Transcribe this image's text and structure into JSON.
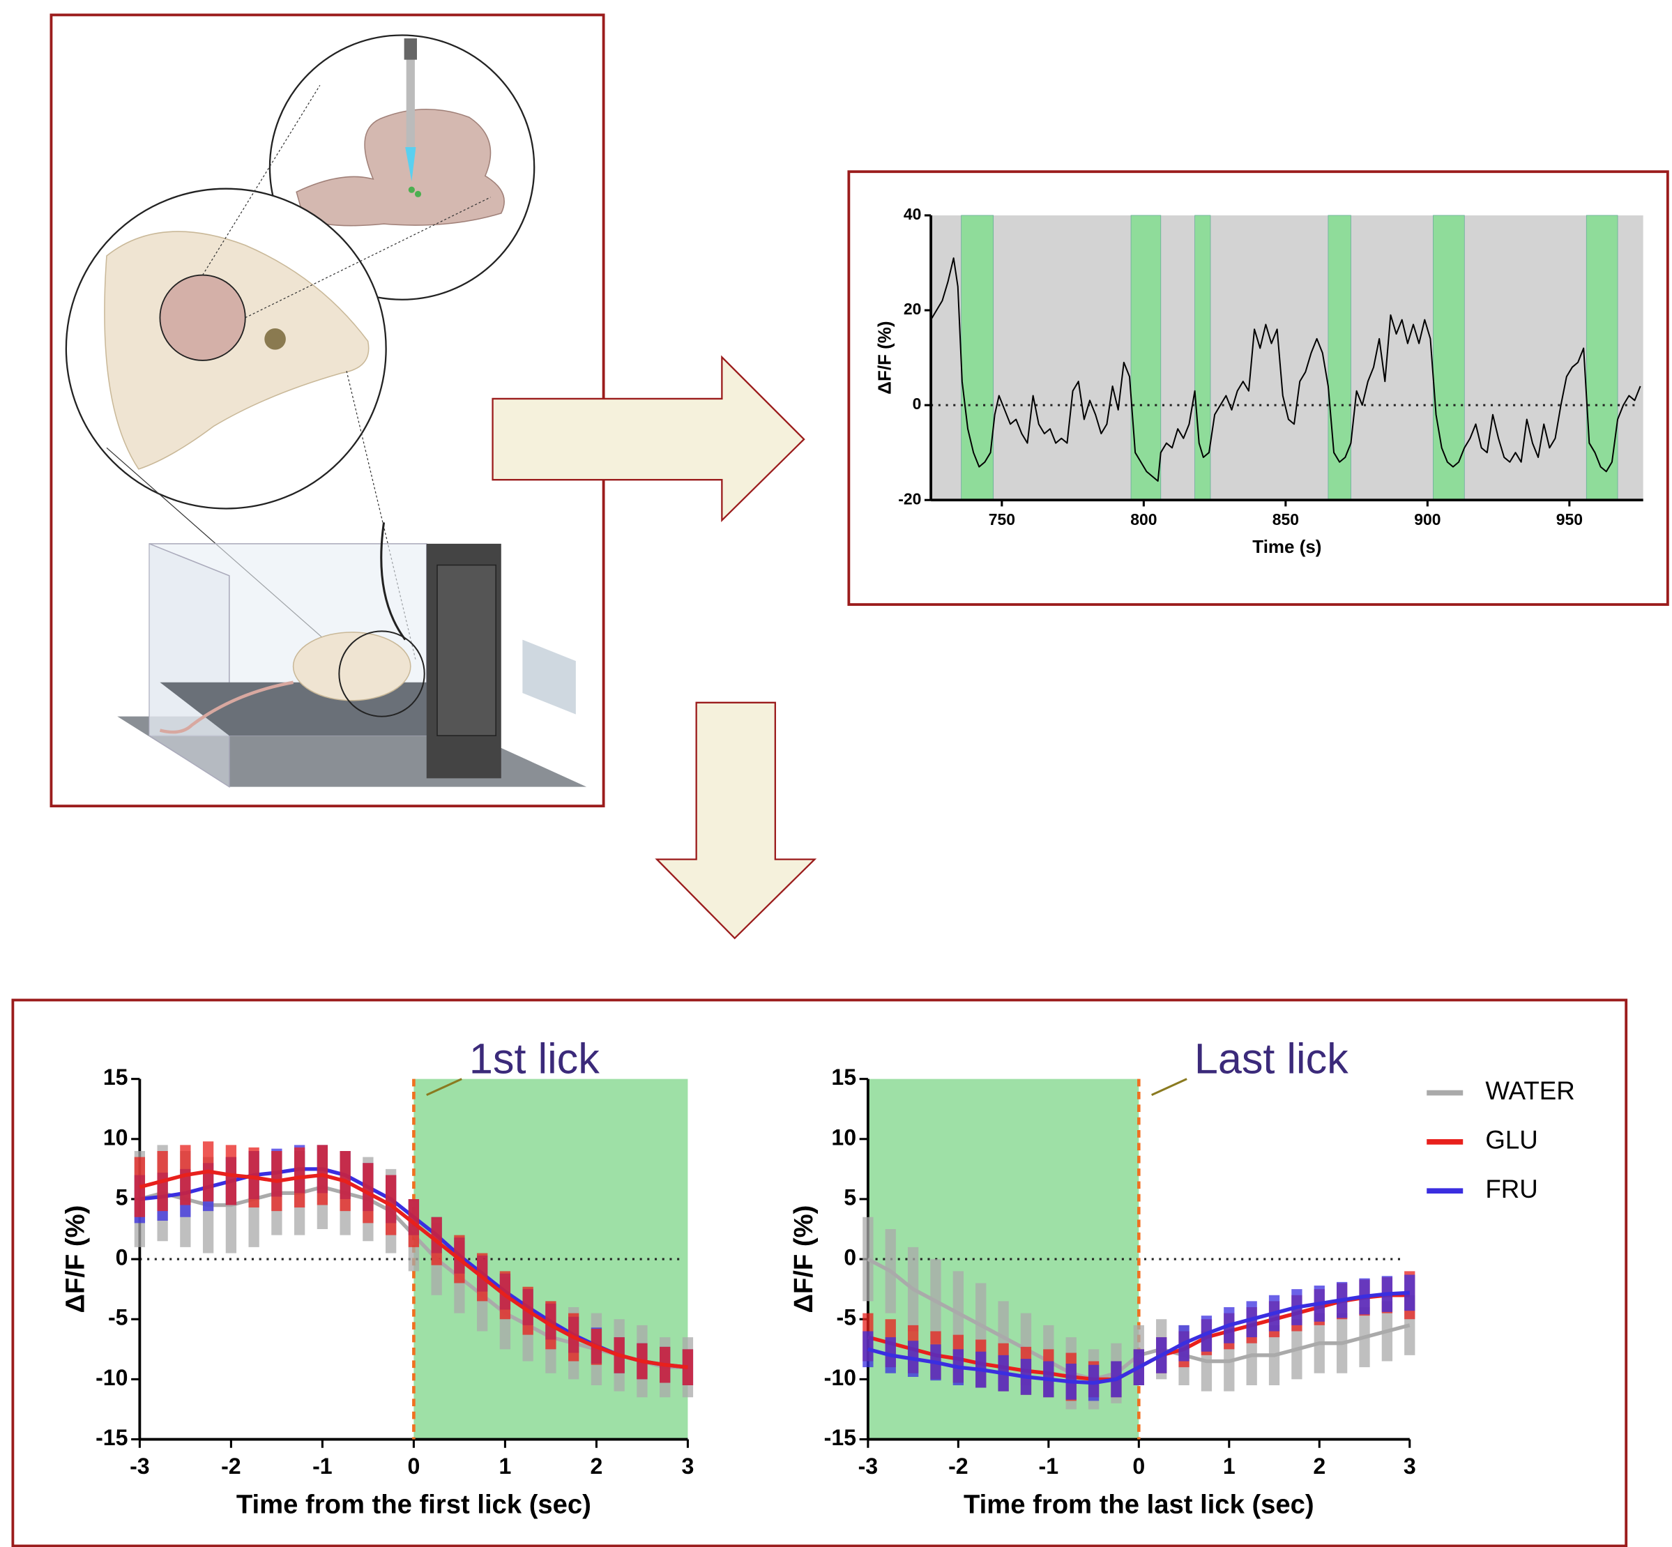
{
  "chart_data": [
    {
      "type": "line",
      "y_label": "ΔF/F (%)",
      "x_label": "Time (s)",
      "xlim": [
        725,
        976
      ],
      "ylim": [
        -20,
        40
      ],
      "xticks": [
        750,
        800,
        850,
        900,
        950
      ],
      "yticks": [
        -20,
        0,
        20,
        40
      ],
      "background_color": "#d3d3d3",
      "shade_color": "#8fdc9a",
      "reference_line": 0,
      "shaded_regions": [
        [
          735.7,
          747
        ],
        [
          795.5,
          806
        ],
        [
          818,
          823.5
        ],
        [
          865,
          873
        ],
        [
          902,
          913
        ],
        [
          956,
          967
        ]
      ],
      "x": [
        725,
        727,
        729,
        731,
        733,
        734.5,
        736,
        738,
        740,
        742,
        744,
        746,
        747.5,
        749,
        751,
        753,
        755,
        757,
        759,
        761,
        763,
        765,
        767,
        769,
        771,
        773,
        775,
        777,
        779,
        781,
        783,
        785,
        787,
        789,
        791,
        793,
        795,
        797,
        799,
        801,
        803,
        805,
        806,
        808,
        810,
        812,
        814,
        816,
        818,
        819.5,
        821,
        823,
        825,
        827,
        829,
        831,
        833,
        835,
        837,
        839,
        841,
        843,
        845,
        847,
        849,
        851,
        853,
        855,
        857,
        859,
        861,
        863,
        865,
        867,
        869,
        871,
        873,
        875,
        877,
        879,
        881,
        883,
        885,
        887,
        889,
        891,
        893,
        895,
        897,
        899,
        901,
        903,
        905,
        907,
        909,
        911,
        913,
        915,
        917,
        919,
        921,
        923,
        925,
        927,
        929,
        931,
        933,
        935,
        937,
        939,
        941,
        943,
        945,
        947,
        949,
        951,
        953,
        955,
        957,
        959,
        961,
        963,
        965,
        967,
        969,
        971,
        973,
        975
      ],
      "series": [
        {
          "color": "#000000",
          "values": [
            18,
            20,
            22,
            26,
            31,
            25,
            5,
            -5,
            -10,
            -13,
            -12,
            -10,
            -2,
            2,
            -1,
            -4,
            -3,
            -6,
            -8,
            2,
            -4,
            -6,
            -5,
            -8,
            -7,
            -8,
            3,
            5,
            -3,
            1,
            -2,
            -6,
            -4,
            4,
            -1,
            9,
            6,
            -10,
            -12,
            -14,
            -15,
            -16,
            -10,
            -8,
            -9,
            -5,
            -7,
            -4,
            3,
            -8,
            -11,
            -10,
            -2,
            0,
            2,
            -1,
            3,
            5,
            3,
            16,
            12,
            17,
            13,
            16,
            2,
            -3,
            -4,
            5,
            7,
            11,
            14,
            11,
            4,
            -10,
            -12,
            -11,
            -8,
            3,
            0,
            5,
            8,
            14,
            5,
            19,
            15,
            18,
            13,
            17,
            13,
            18,
            14,
            -2,
            -9,
            -12,
            -13,
            -12,
            -9,
            -7,
            -4,
            -9,
            -10,
            -2,
            -7,
            -11,
            -12,
            -10,
            -12,
            -3,
            -8,
            -11,
            -4,
            -9,
            -7,
            0,
            6,
            8,
            9,
            12,
            -8,
            -10,
            -13,
            -14,
            -12,
            -3,
            0,
            2,
            1,
            4
          ]
        }
      ]
    },
    {
      "type": "line",
      "y_label": "ΔF/F (%)",
      "x_label": "Time from the first lick (sec)",
      "annotation": "1st lick",
      "xlim": [
        -3,
        3
      ],
      "ylim": [
        -15,
        15
      ],
      "xticks": [
        -3,
        -2,
        -1,
        0,
        1,
        2,
        3
      ],
      "yticks": [
        -15,
        -10,
        -5,
        0,
        5,
        10,
        15
      ],
      "shade_color": "#9ee0a6",
      "reference_line": 0,
      "event_line": 0,
      "shaded_regions": [
        [
          0,
          3
        ]
      ],
      "x": [
        -3,
        -2.75,
        -2.5,
        -2.25,
        -2,
        -1.75,
        -1.5,
        -1.25,
        -1,
        -0.75,
        -0.5,
        -0.25,
        0,
        0.25,
        0.5,
        0.75,
        1,
        1.25,
        1.5,
        1.75,
        2,
        2.25,
        2.5,
        2.75,
        3
      ],
      "series": [
        {
          "color": "#aaaaaa",
          "values": [
            5,
            5.5,
            5,
            4.5,
            4.5,
            5,
            5.5,
            5.5,
            6,
            5.5,
            5,
            4,
            2,
            0,
            -1.5,
            -3,
            -4.5,
            -5.5,
            -6.5,
            -7,
            -7.5,
            -8,
            -8.5,
            -9,
            -9
          ],
          "errors": [
            4,
            4,
            4,
            4,
            4,
            4,
            3.5,
            3.5,
            3.5,
            3.5,
            3.5,
            3.5,
            3,
            3,
            3,
            3,
            3,
            3,
            3,
            3,
            3,
            3,
            3,
            2.5,
            2.5
          ]
        },
        {
          "color": "#3a2ee0",
          "values": [
            5,
            5.2,
            5.5,
            6,
            6.5,
            7,
            7.2,
            7.5,
            7.5,
            7,
            6,
            5,
            3.5,
            2,
            0.3,
            -1.2,
            -2.7,
            -4,
            -5.2,
            -6.3,
            -7.2,
            -8,
            -8.5,
            -8.8,
            -9
          ],
          "errors": [
            2,
            2,
            2,
            2,
            2,
            2,
            2,
            2,
            2,
            2,
            2,
            2,
            1.5,
            1.5,
            1.5,
            1.5,
            1.5,
            1.5,
            1.5,
            1.5,
            1.5,
            1.5,
            1.5,
            1.5,
            1.5
          ]
        },
        {
          "color": "#e8201c",
          "values": [
            6,
            6.5,
            7,
            7.3,
            7,
            6.8,
            6.5,
            6.8,
            7,
            6.5,
            5.5,
            4.5,
            3,
            1.5,
            0,
            -1.5,
            -3,
            -4.3,
            -5.5,
            -6.5,
            -7.3,
            -8,
            -8.5,
            -8.8,
            -9
          ],
          "errors": [
            2.5,
            2.5,
            2.5,
            2.5,
            2.5,
            2.5,
            2.5,
            2.5,
            2.5,
            2.5,
            2.5,
            2.5,
            2,
            2,
            2,
            2,
            2,
            2,
            2,
            2,
            1.5,
            1.5,
            1.5,
            1.5,
            1.5
          ]
        }
      ]
    },
    {
      "type": "line",
      "y_label": "ΔF/F (%)",
      "x_label": "Time from the last lick (sec)",
      "annotation": "Last lick",
      "legend": true,
      "xlim": [
        -3,
        3
      ],
      "ylim": [
        -15,
        15
      ],
      "xticks": [
        -3,
        -2,
        -1,
        0,
        1,
        2,
        3
      ],
      "yticks": [
        -15,
        -10,
        -5,
        0,
        5,
        10,
        15
      ],
      "shade_color": "#9ee0a6",
      "reference_line": 0,
      "event_line": 0,
      "shaded_regions": [
        [
          -3,
          0
        ]
      ],
      "x": [
        -3,
        -2.75,
        -2.5,
        -2.25,
        -2,
        -1.75,
        -1.5,
        -1.25,
        -1,
        -0.75,
        -0.5,
        -0.25,
        0,
        0.25,
        0.5,
        0.75,
        1,
        1.25,
        1.5,
        1.75,
        2,
        2.25,
        2.5,
        2.75,
        3
      ],
      "series": [
        {
          "name": "WATER",
          "color": "#aaaaaa",
          "values": [
            0,
            -1,
            -2.5,
            -3.5,
            -4.5,
            -5.5,
            -6.5,
            -7.5,
            -8.5,
            -9.5,
            -10,
            -9.5,
            -8,
            -7.5,
            -8,
            -8.5,
            -8.5,
            -8,
            -8,
            -7.5,
            -7,
            -7,
            -6.5,
            -6,
            -5.5
          ],
          "errors": [
            3.5,
            3.5,
            3.5,
            3.5,
            3.5,
            3.5,
            3,
            3,
            3,
            3,
            2.5,
            2.5,
            2.5,
            2.5,
            2.5,
            2.5,
            2.5,
            2.5,
            2.5,
            2.5,
            2.5,
            2.5,
            2.5,
            2.5,
            2.5
          ]
        },
        {
          "name": "GLU",
          "color": "#e8201c",
          "values": [
            -6.5,
            -7,
            -7.5,
            -8,
            -8.3,
            -8.7,
            -9,
            -9.3,
            -9.5,
            -9.8,
            -10,
            -10,
            -9,
            -8,
            -7.5,
            -6.5,
            -6,
            -5.5,
            -5,
            -4.5,
            -4,
            -3.5,
            -3.2,
            -3,
            -3
          ],
          "errors": [
            2,
            2,
            2,
            2,
            2,
            2,
            2,
            2,
            2,
            2,
            1.5,
            1.5,
            1.5,
            1.5,
            1.5,
            1.5,
            1.5,
            1.5,
            1.5,
            1.5,
            1.5,
            1.5,
            1.5,
            1.5,
            2
          ]
        },
        {
          "name": "FRU",
          "color": "#3a2ee0",
          "values": [
            -7.5,
            -8,
            -8.3,
            -8.6,
            -9,
            -9.2,
            -9.5,
            -9.8,
            -10,
            -10.2,
            -10.3,
            -10,
            -9,
            -8,
            -7,
            -6.2,
            -5.5,
            -5,
            -4.5,
            -4,
            -3.7,
            -3.4,
            -3.1,
            -2.9,
            -2.8
          ],
          "errors": [
            1.5,
            1.5,
            1.5,
            1.5,
            1.5,
            1.5,
            1.5,
            1.5,
            1.5,
            1.5,
            1.5,
            1.5,
            1.5,
            1.5,
            1.5,
            1.5,
            1.5,
            1.5,
            1.5,
            1.5,
            1.5,
            1.5,
            1.5,
            1.5,
            1.5
          ]
        }
      ]
    }
  ]
}
